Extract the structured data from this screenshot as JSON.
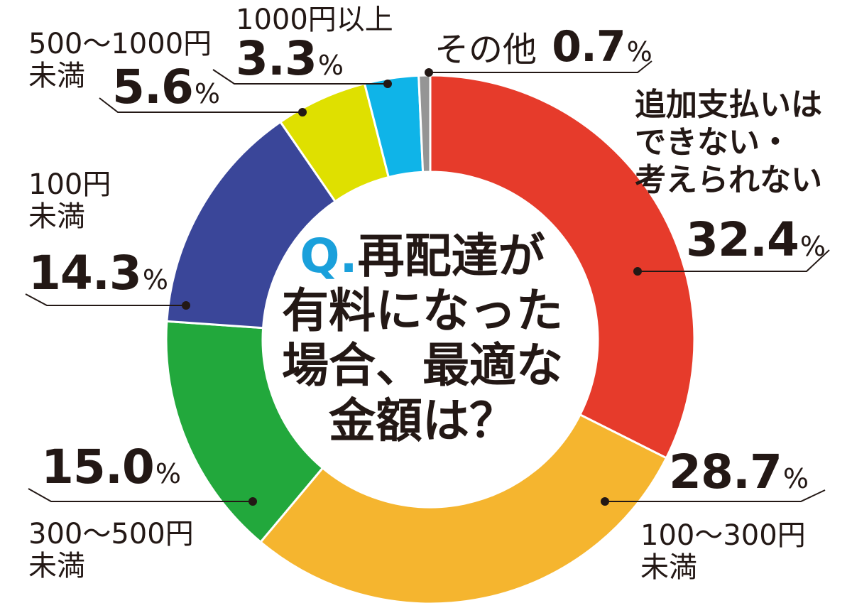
{
  "question": {
    "prefix": "Q.",
    "lines": [
      "再配達が",
      "有料になった",
      "場合、最適な",
      "金額は？"
    ]
  },
  "chart_data": {
    "type": "pie",
    "style": "donut",
    "title": "Q.再配達が有料になった場合、最適な金額は？",
    "slices": [
      {
        "label_lines": [
          "追加支払いは",
          "できない・",
          "考えられない"
        ],
        "value": 32.4,
        "color": "#e63b2b"
      },
      {
        "label_lines": [
          "100〜300円",
          "未満"
        ],
        "value": 28.7,
        "color": "#f5b52f"
      },
      {
        "label_lines": [
          "300〜500円",
          "未満"
        ],
        "value": 15.0,
        "color": "#22a83c"
      },
      {
        "label_lines": [
          "100円",
          "未満"
        ],
        "value": 14.3,
        "color": "#3a4699"
      },
      {
        "label_lines": [
          "500〜1000円",
          "未満"
        ],
        "value": 5.6,
        "color": "#dfe000"
      },
      {
        "label_lines": [
          "1000円以上"
        ],
        "value": 3.3,
        "color": "#0fb4e8"
      },
      {
        "label_lines": [
          "その他"
        ],
        "value": 0.7,
        "color": "#959595"
      }
    ],
    "value_format": "%.1f",
    "unit": "%"
  }
}
